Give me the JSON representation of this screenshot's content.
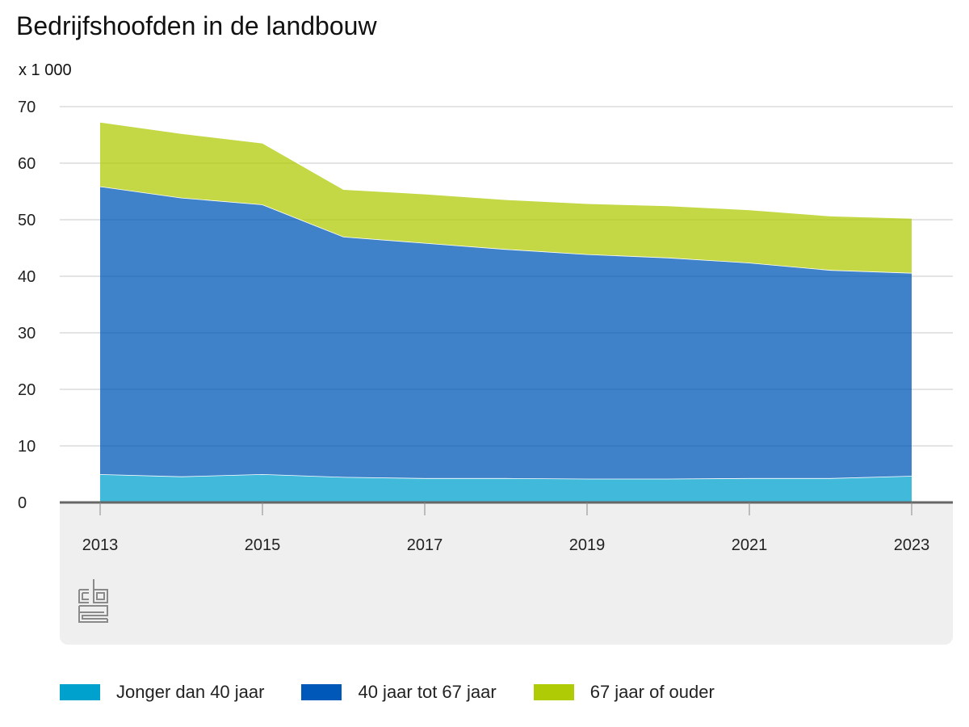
{
  "chart_data": {
    "type": "area",
    "stacked": true,
    "title": "Bedrijfshoofden in de landbouw",
    "unit_label": "x 1 000",
    "x": [
      2013,
      2014,
      2015,
      2016,
      2017,
      2018,
      2019,
      2020,
      2021,
      2022,
      2023
    ],
    "x_tick_labels": [
      "2013",
      "2015",
      "2017",
      "2019",
      "2021",
      "2023"
    ],
    "y_ticks": [
      0,
      10,
      20,
      30,
      40,
      50,
      60,
      70
    ],
    "ylim": [
      0,
      70
    ],
    "series": [
      {
        "name": "Jonger dan 40 jaar",
        "color": "#00a1cd",
        "values": [
          5.0,
          4.6,
          5.0,
          4.5,
          4.3,
          4.3,
          4.2,
          4.2,
          4.3,
          4.3,
          4.7
        ]
      },
      {
        "name": "40 jaar tot 67 jaar",
        "color": "#0058b8",
        "values": [
          50.9,
          49.3,
          47.7,
          42.5,
          41.6,
          40.5,
          39.7,
          39.1,
          38.1,
          36.8,
          35.9
        ]
      },
      {
        "name": "67 jaar of ouder",
        "color": "#afcb05",
        "values": [
          11.4,
          11.4,
          10.9,
          8.4,
          8.7,
          8.8,
          9.0,
          9.2,
          9.4,
          9.6,
          9.7
        ]
      }
    ],
    "legend_position": "bottom"
  }
}
